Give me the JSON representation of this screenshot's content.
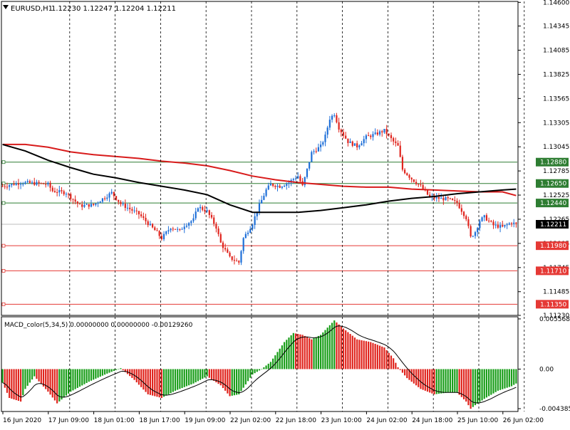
{
  "header": {
    "symbol_tf": "EURUSD,H1",
    "quote": "1.12230 1.12247 1.12204 1.12211"
  },
  "macd": {
    "label": "MACD_color(5,34,5) 0.00000000 0.00000000 -0.00129260",
    "ticks": [
      {
        "label": "0.0055685",
        "value": 0.0055685
      },
      {
        "label": "0.00",
        "value": 0
      },
      {
        "label": "-0.004385",
        "value": -0.004385
      }
    ],
    "ylim": [
      -0.0047,
      0.0058
    ]
  },
  "price_axis": {
    "ticks": [
      "1.14600",
      "1.14345",
      "1.14085",
      "1.13825",
      "1.13565",
      "1.13305",
      "1.13045",
      "1.12785",
      "1.12525",
      "1.12265",
      "1.12005",
      "1.11745",
      "1.11485",
      "1.11230"
    ],
    "current": "1.12211",
    "ylim": [
      1.1123,
      1.1461
    ]
  },
  "levels": [
    {
      "label": "1.12880",
      "value": 1.1288,
      "color": "#2e7d32"
    },
    {
      "label": "1.12650",
      "value": 1.1265,
      "color": "#2e7d32"
    },
    {
      "label": "1.12440",
      "value": 1.1244,
      "color": "#2e7d32"
    },
    {
      "label": "1.11980",
      "value": 1.1198,
      "color": "#e53935"
    },
    {
      "label": "1.11710",
      "value": 1.1171,
      "color": "#e53935"
    },
    {
      "label": "1.11350",
      "value": 1.1135,
      "color": "#e53935"
    }
  ],
  "time_axis": {
    "labels": [
      "16 Jun 2020",
      "17 Jun 09:00",
      "18 Jun 01:00",
      "18 Jun 17:00",
      "19 Jun 09:00",
      "22 Jun 02:00",
      "22 Jun 18:00",
      "23 Jun 10:00",
      "24 Jun 02:00",
      "24 Jun 18:00",
      "25 Jun 10:00",
      "26 Jun 02:00"
    ]
  },
  "colors": {
    "bull": "#1e6fd8",
    "bear": "#e0241d",
    "ma_slow": "#000000",
    "ma_fast": "#d81b1b",
    "macd_up": "#1a9e1a",
    "macd_down": "#e0241d",
    "grid": "#000000"
  },
  "chart_data": {
    "type": "candlestick",
    "symbol": "EURUSD",
    "timeframe": "H1",
    "close_path": [
      [
        0,
        1.1262
      ],
      [
        8,
        1.1266
      ],
      [
        16,
        1.1265
      ],
      [
        20,
        1.1264
      ],
      [
        22,
        1.1257
      ],
      [
        28,
        1.1255
      ],
      [
        34,
        1.1241
      ],
      [
        40,
        1.1242
      ],
      [
        48,
        1.1255
      ],
      [
        52,
        1.1243
      ],
      [
        60,
        1.1232
      ],
      [
        64,
        1.1222
      ],
      [
        68,
        1.1212
      ],
      [
        70,
        1.1206
      ],
      [
        74,
        1.1218
      ],
      [
        78,
        1.1214
      ],
      [
        80,
        1.122
      ],
      [
        84,
        1.1226
      ],
      [
        86,
        1.124
      ],
      [
        90,
        1.1235
      ],
      [
        94,
        1.1218
      ],
      [
        96,
        1.1201
      ],
      [
        100,
        1.1185
      ],
      [
        104,
        1.118
      ],
      [
        106,
        1.1206
      ],
      [
        110,
        1.1222
      ],
      [
        112,
        1.1236
      ],
      [
        116,
        1.1258
      ],
      [
        118,
        1.1264
      ],
      [
        122,
        1.1262
      ],
      [
        126,
        1.1266
      ],
      [
        128,
        1.127
      ],
      [
        130,
        1.1273
      ],
      [
        132,
        1.1262
      ],
      [
        136,
        1.1298
      ],
      [
        140,
        1.1305
      ],
      [
        142,
        1.1316
      ],
      [
        144,
        1.1335
      ],
      [
        146,
        1.134
      ],
      [
        148,
        1.1325
      ],
      [
        152,
        1.131
      ],
      [
        156,
        1.1305
      ],
      [
        160,
        1.1315
      ],
      [
        164,
        1.1318
      ],
      [
        168,
        1.1322
      ],
      [
        172,
        1.131
      ],
      [
        174,
        1.1305
      ],
      [
        176,
        1.128
      ],
      [
        180,
        1.127
      ],
      [
        184,
        1.1262
      ],
      [
        188,
        1.125
      ],
      [
        192,
        1.1249
      ],
      [
        196,
        1.1248
      ],
      [
        200,
        1.1244
      ],
      [
        204,
        1.1228
      ],
      [
        206,
        1.1207
      ],
      [
        208,
        1.1213
      ],
      [
        210,
        1.1225
      ],
      [
        212,
        1.1229
      ],
      [
        216,
        1.122
      ],
      [
        220,
        1.1218
      ],
      [
        224,
        1.1223
      ],
      [
        226,
        1.1221
      ]
    ],
    "ma_slow": [
      [
        0,
        1.1307
      ],
      [
        10,
        1.13
      ],
      [
        20,
        1.129
      ],
      [
        30,
        1.1282
      ],
      [
        40,
        1.1275
      ],
      [
        50,
        1.1271
      ],
      [
        60,
        1.1266
      ],
      [
        70,
        1.1262
      ],
      [
        80,
        1.1258
      ],
      [
        90,
        1.1253
      ],
      [
        100,
        1.1242
      ],
      [
        110,
        1.1234
      ],
      [
        120,
        1.1234
      ],
      [
        130,
        1.1234
      ],
      [
        140,
        1.1236
      ],
      [
        150,
        1.1239
      ],
      [
        160,
        1.1242
      ],
      [
        170,
        1.1246
      ],
      [
        180,
        1.1249
      ],
      [
        190,
        1.1251
      ],
      [
        200,
        1.1254
      ],
      [
        210,
        1.1256
      ],
      [
        220,
        1.1258
      ],
      [
        226,
        1.1259
      ]
    ],
    "ma_fast": [
      [
        0,
        1.1307
      ],
      [
        10,
        1.1307
      ],
      [
        20,
        1.1304
      ],
      [
        30,
        1.1299
      ],
      [
        40,
        1.1296
      ],
      [
        50,
        1.1294
      ],
      [
        60,
        1.1292
      ],
      [
        70,
        1.1289
      ],
      [
        80,
        1.1287
      ],
      [
        90,
        1.1284
      ],
      [
        100,
        1.1279
      ],
      [
        110,
        1.1273
      ],
      [
        120,
        1.1269
      ],
      [
        130,
        1.1266
      ],
      [
        140,
        1.1264
      ],
      [
        150,
        1.1262
      ],
      [
        160,
        1.1261
      ],
      [
        170,
        1.1261
      ],
      [
        180,
        1.1259
      ],
      [
        190,
        1.1258
      ],
      [
        200,
        1.1257
      ],
      [
        210,
        1.1256
      ],
      [
        220,
        1.1256
      ],
      [
        226,
        1.1252
      ]
    ],
    "macd_path": [
      [
        0,
        -0.0015
      ],
      [
        3,
        -0.0032
      ],
      [
        8,
        -0.0036
      ],
      [
        10,
        -0.0022
      ],
      [
        14,
        -0.0008
      ],
      [
        20,
        -0.0025
      ],
      [
        24,
        -0.0038
      ],
      [
        30,
        -0.0025
      ],
      [
        38,
        -0.0014
      ],
      [
        46,
        -0.0005
      ],
      [
        52,
        0.0001
      ],
      [
        58,
        -0.0012
      ],
      [
        64,
        -0.0028
      ],
      [
        70,
        -0.0032
      ],
      [
        76,
        -0.0024
      ],
      [
        84,
        -0.0016
      ],
      [
        90,
        -0.0008
      ],
      [
        96,
        -0.0018
      ],
      [
        100,
        -0.003
      ],
      [
        104,
        -0.0028
      ],
      [
        110,
        -0.0006
      ],
      [
        114,
        0.0
      ],
      [
        118,
        0.0008
      ],
      [
        124,
        0.003
      ],
      [
        128,
        0.004
      ],
      [
        132,
        0.0038
      ],
      [
        136,
        0.0033
      ],
      [
        140,
        0.0038
      ],
      [
        146,
        0.0054
      ],
      [
        150,
        0.0045
      ],
      [
        156,
        0.0033
      ],
      [
        162,
        0.003
      ],
      [
        168,
        0.0024
      ],
      [
        172,
        0.0012
      ],
      [
        174,
        0.0002
      ],
      [
        178,
        -0.001
      ],
      [
        184,
        -0.0022
      ],
      [
        190,
        -0.0028
      ],
      [
        196,
        -0.0026
      ],
      [
        200,
        -0.0026
      ],
      [
        204,
        -0.0036
      ],
      [
        206,
        -0.0044
      ],
      [
        208,
        -0.004
      ],
      [
        212,
        -0.0033
      ],
      [
        218,
        -0.0024
      ],
      [
        224,
        -0.0019
      ],
      [
        226,
        -0.0016
      ]
    ]
  }
}
